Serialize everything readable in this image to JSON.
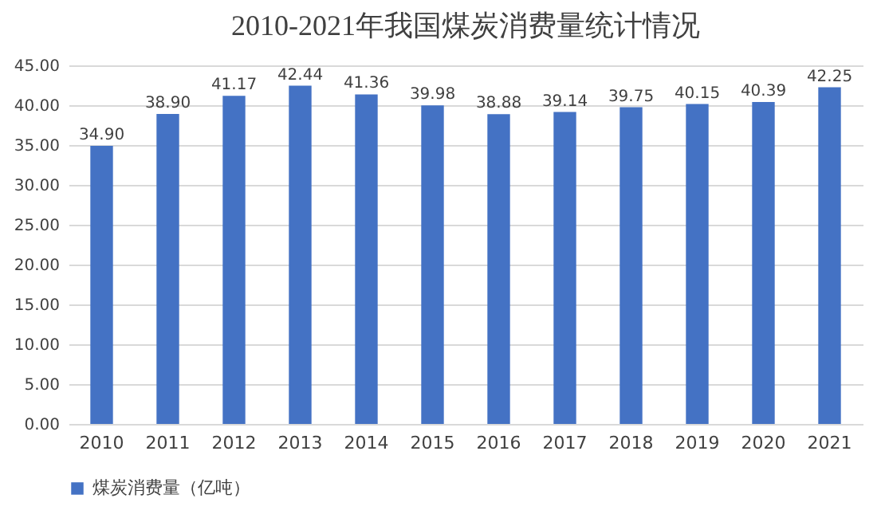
{
  "chart_data": {
    "type": "bar",
    "title": "2010-2021年我国煤炭消费量统计情况",
    "categories": [
      "2010",
      "2011",
      "2012",
      "2013",
      "2014",
      "2015",
      "2016",
      "2017",
      "2018",
      "2019",
      "2020",
      "2021"
    ],
    "series": [
      {
        "name": "煤炭消费量（亿吨）",
        "color": "#4472c4",
        "values": [
          34.9,
          38.9,
          41.17,
          42.44,
          41.36,
          39.98,
          38.88,
          39.14,
          39.75,
          40.15,
          40.39,
          42.25
        ],
        "value_labels": [
          "34.90",
          "38.90",
          "41.17",
          "42.44",
          "41.36",
          "39.98",
          "38.88",
          "39.14",
          "39.75",
          "40.15",
          "40.39",
          "42.25"
        ]
      }
    ],
    "ylim": [
      0,
      45
    ],
    "yticks": [
      {
        "value": 0,
        "label": "0.00"
      },
      {
        "value": 5,
        "label": "5.00"
      },
      {
        "value": 10,
        "label": "10.00"
      },
      {
        "value": 15,
        "label": "15.00"
      },
      {
        "value": 20,
        "label": "20.00"
      },
      {
        "value": 25,
        "label": "25.00"
      },
      {
        "value": 30,
        "label": "30.00"
      },
      {
        "value": 35,
        "label": "35.00"
      },
      {
        "value": 40,
        "label": "40.00"
      },
      {
        "value": 45,
        "label": "45.00"
      }
    ],
    "grid": "y",
    "legend": "bottom"
  }
}
